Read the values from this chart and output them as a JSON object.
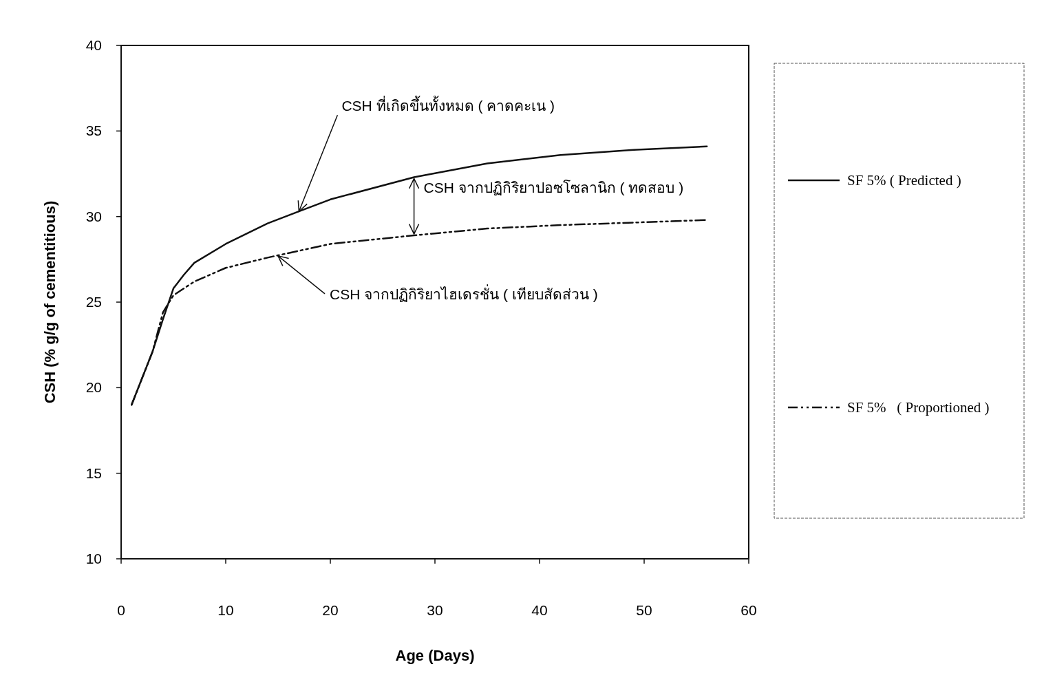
{
  "chart_data": {
    "type": "line",
    "xlabel": "Age (Days)",
    "ylabel": "CSH (% g/g of cementitious)",
    "xlim": [
      0,
      60
    ],
    "xticks": [
      0,
      10,
      20,
      30,
      40,
      50,
      60
    ],
    "ylim": [
      10,
      40
    ],
    "yticks": [
      10,
      15,
      20,
      25,
      30,
      35,
      40
    ],
    "grid": false,
    "legend": "right",
    "marker": "none",
    "series": [
      {
        "name": "SF 5% ( Predicted )",
        "color": "#111111",
        "line_style": "solid",
        "x": [
          1,
          3,
          4,
          5,
          6,
          7,
          10,
          14,
          17,
          20,
          28,
          35,
          42,
          49,
          56
        ],
        "values": [
          19.0,
          22.1,
          24.0,
          25.8,
          26.6,
          27.3,
          28.4,
          29.6,
          30.3,
          31.0,
          32.3,
          33.1,
          33.6,
          33.9,
          34.1
        ]
      },
      {
        "name": "SF 5%   ( Proportioned )",
        "color": "#111111",
        "line_style": "dashed",
        "x": [
          1,
          3,
          4,
          5,
          7,
          10,
          14,
          20,
          28,
          35,
          42,
          56
        ],
        "values": [
          19.0,
          22.1,
          24.4,
          25.4,
          26.2,
          27.0,
          27.6,
          28.4,
          28.9,
          29.3,
          29.5,
          29.8
        ]
      }
    ],
    "annotations": [
      {
        "text": "CSH ที่เกิดขึ้นทั้งหมด ( คาดคะเน )",
        "x": 17,
        "y": 30.3
      },
      {
        "text": "CSH จากปฏิกิริยาปอซโซลานิก ( ทดสอบ )",
        "x": 28,
        "y": 32.3
      },
      {
        "text": "CSH จากปฏิกิริยาไฮเดรชั่น ( เทียบสัดส่วน )",
        "x": 15,
        "y": 27.7
      }
    ]
  }
}
